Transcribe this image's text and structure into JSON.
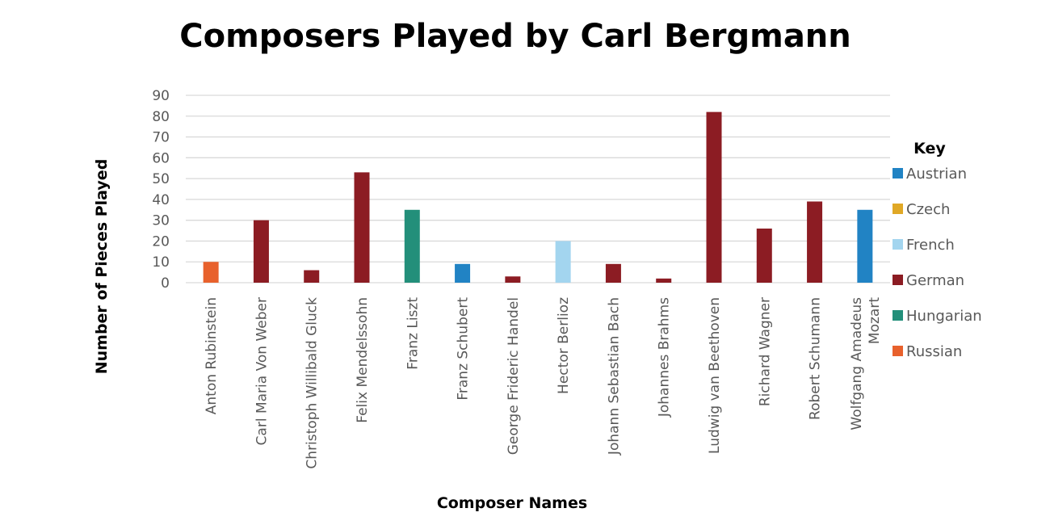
{
  "chart_data": {
    "type": "bar",
    "title": "Composers Played by Carl Bergmann",
    "xlabel": "Composer Names",
    "ylabel": "Number of Pieces Played",
    "ylim": [
      0,
      90
    ],
    "yticks": [
      0,
      10,
      20,
      30,
      40,
      50,
      60,
      70,
      80,
      90
    ],
    "grid": true,
    "legend_title": "Key",
    "legend_position": "right",
    "legend": [
      {
        "label": "Austrian",
        "color": "#2183C4"
      },
      {
        "label": "Czech",
        "color": "#E0A826"
      },
      {
        "label": "French",
        "color": "#A3D5EF"
      },
      {
        "label": "German",
        "color": "#8C1C23"
      },
      {
        "label": "Hungarian",
        "color": "#238F7A"
      },
      {
        "label": "Russian",
        "color": "#E8612C"
      }
    ],
    "categories": [
      [
        "Anton Rubinstein"
      ],
      [
        "Carl Maria Von Weber"
      ],
      [
        "Christoph Willibald Gluck"
      ],
      [
        "Felix Mendelssohn"
      ],
      [
        "Franz Liszt"
      ],
      [
        "Franz Schubert"
      ],
      [
        "George Frideric Handel"
      ],
      [
        "Hector Berlioz"
      ],
      [
        "Johann Sebastian Bach"
      ],
      [
        "Johannes Brahms"
      ],
      [
        "Ludwig van Beethoven"
      ],
      [
        "Richard Wagner"
      ],
      [
        "Robert Schumann"
      ],
      [
        "Wolfgang Amadeus",
        "Mozart"
      ]
    ],
    "values": [
      10,
      30,
      6,
      53,
      35,
      9,
      3,
      20,
      9,
      2,
      82,
      26,
      39,
      35
    ],
    "nationality": [
      "Russian",
      "German",
      "German",
      "German",
      "Hungarian",
      "Austrian",
      "German",
      "French",
      "German",
      "German",
      "German",
      "German",
      "German",
      "Austrian"
    ]
  }
}
